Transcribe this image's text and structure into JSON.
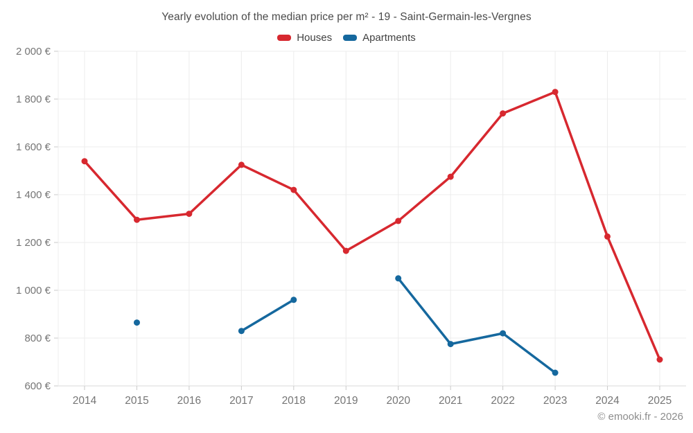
{
  "title": "Yearly evolution of the median price per m² - 19 - Saint-Germain-les-Vergnes",
  "footer": "© emooki.fr - 2026",
  "legend": {
    "items": [
      {
        "label": "Houses",
        "color": "#d7282f"
      },
      {
        "label": "Apartments",
        "color": "#15689e"
      }
    ]
  },
  "chart_data": {
    "type": "line",
    "title": "Yearly evolution of the median price per m² - 19 - Saint-Germain-les-Vergnes",
    "categories": [
      "2014",
      "2015",
      "2016",
      "2017",
      "2018",
      "2019",
      "2020",
      "2021",
      "2022",
      "2023",
      "2024",
      "2025"
    ],
    "series": [
      {
        "name": "Houses",
        "color": "#d7282f",
        "values": [
          1540,
          1295,
          1320,
          1525,
          1420,
          1165,
          1290,
          1475,
          1740,
          1830,
          1225,
          710
        ]
      },
      {
        "name": "Apartments",
        "color": "#15689e",
        "values": [
          null,
          865,
          null,
          830,
          960,
          null,
          1050,
          775,
          820,
          655,
          null,
          null
        ]
      }
    ],
    "xlabel": "",
    "ylabel": "",
    "ylim": [
      600,
      2000
    ],
    "ytick_step": 200,
    "ytick_suffix": " €",
    "grid": true,
    "legend_position": "top"
  },
  "axis_colors": {
    "grid": "#ececec",
    "axis_line": "#d9d9d9",
    "tick": "#c9c9c9",
    "label": "#757575"
  }
}
